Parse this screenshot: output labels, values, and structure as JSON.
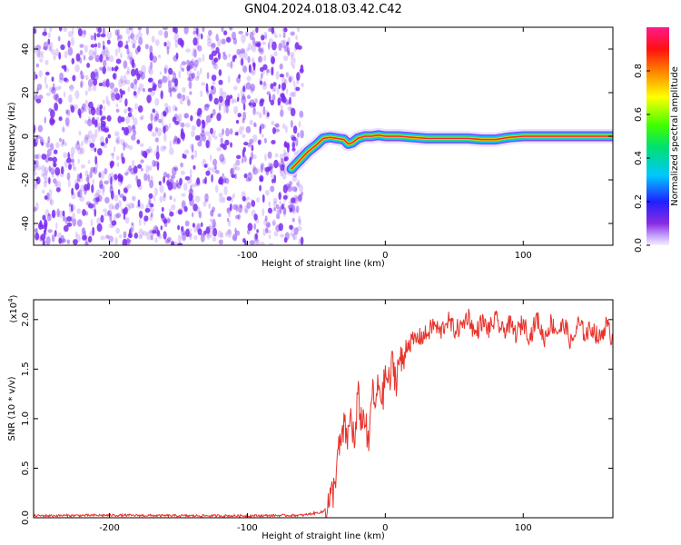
{
  "title": "GN04.2024.018.03.42.C42",
  "colors": {
    "speckle": "#7a2cf0",
    "snr_line": "#e8322a"
  },
  "chart_data": [
    {
      "type": "heatmap",
      "xlabel": "Height of straight line (km)",
      "ylabel": "Frequency (Hz)",
      "xlim": [
        -255,
        165
      ],
      "ylim": [
        -50,
        50
      ],
      "x_ticks": [
        -200,
        -100,
        0,
        100
      ],
      "y_ticks": [
        -40,
        -20,
        0,
        20,
        40
      ],
      "colorbar": {
        "label": "Normalized spectral amplitude",
        "range": [
          0,
          1
        ],
        "ticks": [
          "0.0",
          "0.2",
          "0.4",
          "0.6",
          "0.8"
        ],
        "colormap": "rainbow (violet to red)"
      },
      "ridge": {
        "x": [
          -68,
          -62,
          -56,
          -50,
          -45,
          -40,
          -35,
          -30,
          -27,
          -24,
          -20,
          -15,
          -10,
          -5,
          0,
          10,
          20,
          30,
          40,
          50,
          60,
          70,
          80,
          90,
          100,
          110,
          120,
          130,
          140,
          150,
          160,
          165
        ],
        "y": [
          -15,
          -11,
          -7,
          -4,
          -1,
          -0.5,
          -1,
          -1.5,
          -3.5,
          -3,
          -1,
          0,
          0,
          0.5,
          0,
          0,
          -0.5,
          -1,
          -1,
          -1,
          -1,
          -1.5,
          -1.5,
          -0.5,
          0,
          0,
          0,
          0,
          0,
          0,
          0,
          0
        ]
      },
      "noise_region": {
        "x_range": [
          -255,
          -60
        ],
        "description_free": true
      },
      "grid": false
    },
    {
      "type": "line",
      "xlabel": "Height of straight line (km)",
      "ylabel": "SNR (10 * v/v)",
      "y_multiplier": "(x10",
      "y_exponent": "4",
      "xlim": [
        -255,
        165
      ],
      "ylim": [
        0,
        22000
      ],
      "x_ticks": [
        -200,
        -100,
        0,
        100
      ],
      "y_ticks": [
        "0.0",
        "0.5",
        "1.0",
        "1.5",
        "2.0"
      ],
      "y_tick_values": [
        0,
        5000,
        10000,
        15000,
        20000
      ],
      "series": [
        {
          "x": [
            -255,
            -200,
            -150,
            -100,
            -60,
            -45,
            -40,
            -37,
            -35,
            -32,
            -30,
            -27,
            -25,
            -22,
            -20,
            -17,
            -15,
            -12,
            -10,
            -7,
            -5,
            -2,
            0,
            3,
            5,
            8,
            10,
            13,
            15,
            20,
            25,
            30,
            35,
            40,
            45,
            50,
            55,
            60,
            65,
            70,
            75,
            80,
            85,
            90,
            95,
            100,
            105,
            110,
            115,
            120,
            125,
            130,
            135,
            140,
            145,
            150,
            155,
            160,
            165
          ],
          "y": [
            200,
            250,
            200,
            200,
            250,
            600,
            1800,
            3000,
            6000,
            7500,
            9000,
            8000,
            10500,
            7000,
            12500,
            9500,
            10500,
            6500,
            13000,
            11000,
            13500,
            12000,
            14500,
            13500,
            15500,
            14000,
            16000,
            15500,
            17500,
            17800,
            18200,
            18500,
            19500,
            18700,
            20000,
            19000,
            19200,
            20500,
            18500,
            19800,
            19000,
            20000,
            18800,
            19500,
            18500,
            19800,
            18200,
            20200,
            18000,
            19700,
            18800,
            19500,
            17500,
            19600,
            18500,
            19200,
            18000,
            19500,
            18000
          ]
        }
      ],
      "grid": false
    }
  ]
}
